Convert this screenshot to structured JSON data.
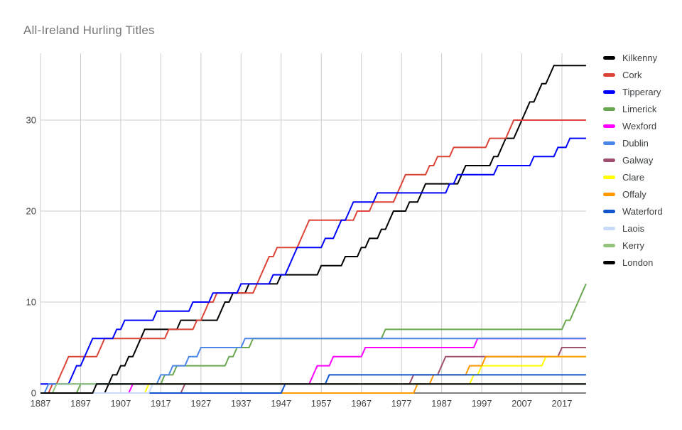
{
  "title": "All-Ireland Hurling Titles",
  "chart_data": {
    "type": "line",
    "title": "All-Ireland Hurling Titles",
    "xlabel": "",
    "ylabel": "",
    "x_range": [
      1887,
      2023
    ],
    "ylim": [
      0,
      37.4
    ],
    "x_ticks": [
      1887,
      1897,
      1907,
      1917,
      1927,
      1937,
      1947,
      1957,
      1967,
      1977,
      1987,
      1997,
      2007,
      2017
    ],
    "y_ticks": [
      0,
      10,
      20,
      30
    ],
    "grid": "on",
    "legend_position": "right",
    "line_mode": "cumulative-by-year",
    "series": [
      {
        "name": "Kilkenny",
        "color": "#000000",
        "total": 36,
        "win_years": [
          1904,
          1905,
          1907,
          1909,
          1911,
          1912,
          1913,
          1922,
          1932,
          1933,
          1935,
          1939,
          1947,
          1957,
          1963,
          1967,
          1969,
          1972,
          1974,
          1975,
          1979,
          1982,
          1983,
          1992,
          1993,
          2000,
          2002,
          2003,
          2006,
          2007,
          2008,
          2009,
          2011,
          2012,
          2014,
          2015
        ]
      },
      {
        "name": "Cork",
        "color": "#db4437",
        "total": 30,
        "win_years": [
          1890,
          1892,
          1893,
          1894,
          1902,
          1903,
          1919,
          1926,
          1928,
          1929,
          1931,
          1941,
          1942,
          1943,
          1944,
          1946,
          1952,
          1953,
          1954,
          1966,
          1970,
          1976,
          1977,
          1978,
          1984,
          1986,
          1990,
          1999,
          2004,
          2005
        ]
      },
      {
        "name": "Tipperary",
        "color": "#0000ff",
        "total": 28,
        "win_years": [
          1887,
          1895,
          1896,
          1898,
          1899,
          1900,
          1906,
          1908,
          1916,
          1925,
          1930,
          1937,
          1945,
          1949,
          1950,
          1951,
          1958,
          1961,
          1962,
          1964,
          1965,
          1971,
          1989,
          1991,
          2001,
          2010,
          2016,
          2019
        ]
      },
      {
        "name": "Limerick",
        "color": "#6aa84f",
        "total": 12,
        "win_years": [
          1897,
          1918,
          1921,
          1934,
          1936,
          1940,
          1973,
          2018,
          2020,
          2021,
          2022,
          2023
        ]
      },
      {
        "name": "Wexford",
        "color": "#ff00ff",
        "total": 6,
        "win_years": [
          1910,
          1955,
          1956,
          1960,
          1968,
          1996
        ]
      },
      {
        "name": "Dublin",
        "color": "#4a86e8",
        "total": 6,
        "win_years": [
          1889,
          1917,
          1920,
          1924,
          1927,
          1938
        ]
      },
      {
        "name": "Galway",
        "color": "#a0506e",
        "total": 5,
        "win_years": [
          1923,
          1980,
          1987,
          1988,
          2017
        ]
      },
      {
        "name": "Clare",
        "color": "#ffff00",
        "total": 4,
        "win_years": [
          1914,
          1995,
          1997,
          2013
        ]
      },
      {
        "name": "Offaly",
        "color": "#ff9900",
        "total": 4,
        "win_years": [
          1981,
          1985,
          1994,
          1998
        ]
      },
      {
        "name": "Waterford",
        "color": "#1155cc",
        "total": 2,
        "win_years": [
          1948,
          1959
        ]
      },
      {
        "name": "Laois",
        "color": "#c9daf8",
        "total": 1,
        "win_years": [
          1915
        ]
      },
      {
        "name": "Kerry",
        "color": "#93c47d",
        "total": 1,
        "win_years": [
          1891
        ]
      },
      {
        "name": "London",
        "color": "#000000",
        "total": 1,
        "win_years": [
          1901
        ]
      }
    ]
  }
}
